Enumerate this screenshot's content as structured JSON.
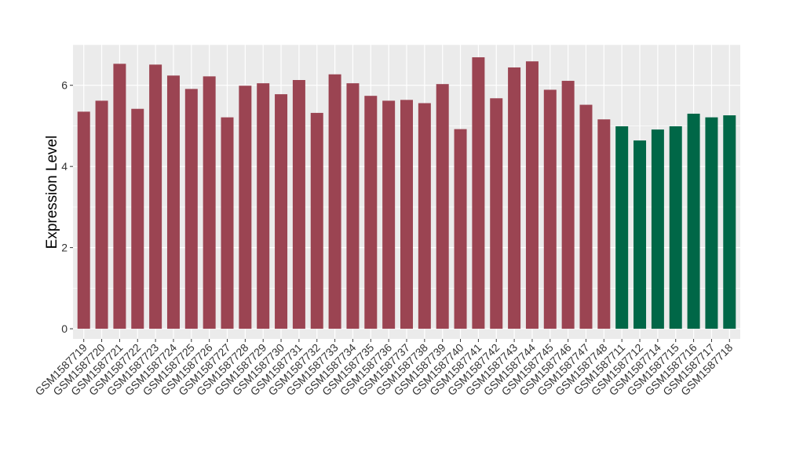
{
  "chart_data": {
    "type": "bar",
    "title": "",
    "xlabel": "",
    "ylabel": "Expression Level",
    "ylim": [
      -0.25,
      7.0
    ],
    "yticks": [
      0,
      2,
      4,
      6
    ],
    "grid": true,
    "legend": "none",
    "categories": [
      "GSM1587719",
      "GSM1587720",
      "GSM1587721",
      "GSM1587722",
      "GSM1587723",
      "GSM1587724",
      "GSM1587725",
      "GSM1587726",
      "GSM1587727",
      "GSM1587728",
      "GSM1587729",
      "GSM1587730",
      "GSM1587731",
      "GSM1587732",
      "GSM1587733",
      "GSM1587734",
      "GSM1587735",
      "GSM1587736",
      "GSM1587737",
      "GSM1587738",
      "GSM1587739",
      "GSM1587740",
      "GSM1587741",
      "GSM1587742",
      "GSM1587743",
      "GSM1587744",
      "GSM1587745",
      "GSM1587746",
      "GSM1587747",
      "GSM1587748",
      "GSM1587711",
      "GSM1587712",
      "GSM1587714",
      "GSM1587715",
      "GSM1587716",
      "GSM1587717",
      "GSM1587718"
    ],
    "values": [
      5.35,
      5.62,
      6.53,
      5.42,
      6.51,
      6.24,
      5.91,
      6.22,
      5.21,
      5.99,
      6.05,
      5.78,
      6.13,
      5.32,
      6.27,
      6.05,
      5.74,
      5.62,
      5.64,
      5.56,
      6.03,
      4.92,
      6.69,
      5.68,
      6.44,
      6.59,
      5.89,
      6.11,
      5.52,
      5.16,
      4.99,
      4.64,
      4.91,
      4.99,
      5.3,
      5.21,
      5.26
    ],
    "groups": [
      "a",
      "a",
      "a",
      "a",
      "a",
      "a",
      "a",
      "a",
      "a",
      "a",
      "a",
      "a",
      "a",
      "a",
      "a",
      "a",
      "a",
      "a",
      "a",
      "a",
      "a",
      "a",
      "a",
      "a",
      "a",
      "a",
      "a",
      "a",
      "a",
      "a",
      "b",
      "b",
      "b",
      "b",
      "b",
      "b",
      "b"
    ],
    "colors": {
      "a": "#9b4452",
      "b": "#006747"
    },
    "panel_background": "#ebebeb",
    "grid_major_color": "#ffffff"
  }
}
